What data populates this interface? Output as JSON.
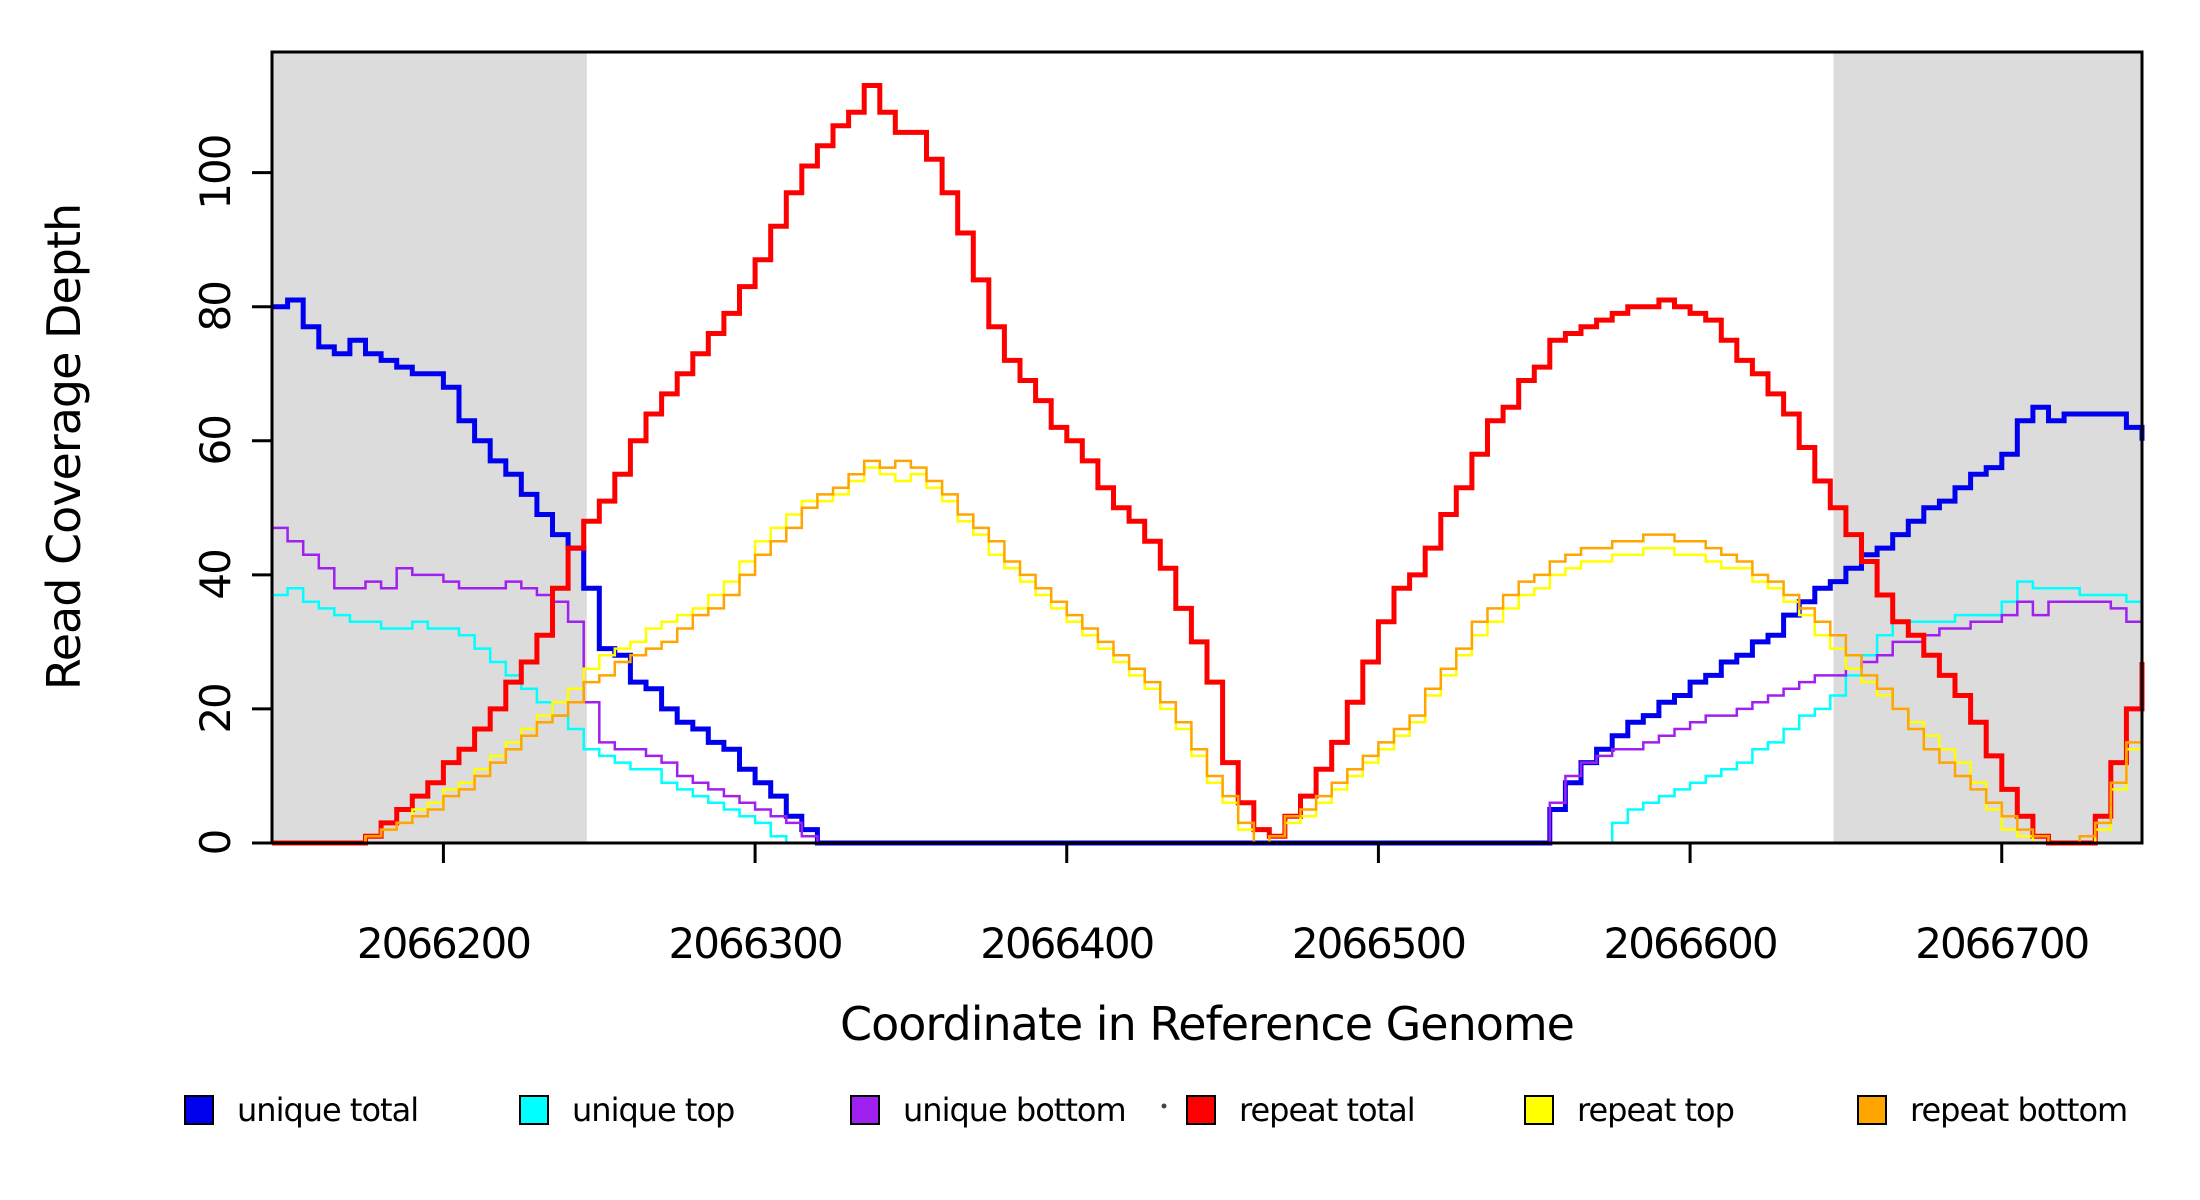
{
  "figure": {
    "x_axis_title": "Coordinate in Reference Genome",
    "y_axis_title": "Read Coverage Depth"
  },
  "chart_data": {
    "type": "line",
    "title": "",
    "xlabel": "Coordinate in Reference Genome",
    "ylabel": "Read Coverage Depth",
    "line_style": "step",
    "grid": false,
    "legend_position": "bottom",
    "background_color": "#FFFFFF",
    "frame_color": "#000000",
    "shaded_band_color": "#DCDCDC",
    "xlim": [
      2066145,
      2066745
    ],
    "ylim": [
      0,
      118
    ],
    "x_ticks": [
      2066200,
      2066300,
      2066400,
      2066500,
      2066600,
      2066700
    ],
    "y_ticks": [
      0,
      20,
      40,
      60,
      80,
      100
    ],
    "shaded_regions": [
      {
        "x0": 2066145,
        "x1": 2066246
      },
      {
        "x0": 2066646,
        "x1": 2066745
      }
    ],
    "x_start": 2066145,
    "x_step": 5,
    "series": [
      {
        "name": "unique total",
        "color": "#0000EE",
        "width": 5,
        "values": [
          80,
          81,
          77,
          74,
          73,
          75,
          73,
          72,
          71,
          70,
          70,
          68,
          63,
          60,
          57,
          55,
          52,
          49,
          46,
          44,
          38,
          29,
          28,
          24,
          23,
          20,
          18,
          17,
          15,
          14,
          11,
          9,
          7,
          4,
          2,
          0,
          0,
          0,
          0,
          0,
          0,
          0,
          0,
          0,
          0,
          0,
          0,
          0,
          0,
          0,
          0,
          0,
          0,
          0,
          0,
          0,
          0,
          0,
          0,
          0,
          0,
          0,
          0,
          0,
          0,
          0,
          0,
          0,
          0,
          0,
          0,
          0,
          0,
          0,
          0,
          0,
          0,
          0,
          0,
          0,
          0,
          0,
          5,
          9,
          12,
          14,
          16,
          18,
          19,
          21,
          22,
          24,
          25,
          27,
          28,
          30,
          31,
          34,
          36,
          38,
          39,
          41,
          43,
          44,
          46,
          48,
          50,
          51,
          53,
          55,
          56,
          58,
          63,
          65,
          63,
          64,
          64,
          64,
          64,
          62,
          60
        ]
      },
      {
        "name": "unique top",
        "color": "#00FFFF",
        "width": 2.5,
        "values": [
          37,
          38,
          36,
          35,
          34,
          33,
          33,
          32,
          32,
          33,
          32,
          32,
          31,
          29,
          27,
          25,
          23,
          21,
          19,
          17,
          14,
          13,
          12,
          11,
          11,
          9,
          8,
          7,
          6,
          5,
          4,
          3,
          1,
          0,
          0,
          0,
          0,
          0,
          0,
          0,
          0,
          0,
          0,
          0,
          0,
          0,
          0,
          0,
          0,
          0,
          0,
          0,
          0,
          0,
          0,
          0,
          0,
          0,
          0,
          0,
          0,
          0,
          0,
          0,
          0,
          0,
          0,
          0,
          0,
          0,
          0,
          0,
          0,
          0,
          0,
          0,
          0,
          0,
          0,
          0,
          0,
          0,
          0,
          0,
          0,
          0,
          3,
          5,
          6,
          7,
          8,
          9,
          10,
          11,
          12,
          14,
          15,
          17,
          19,
          20,
          22,
          25,
          28,
          31,
          33,
          33,
          33,
          33,
          34,
          34,
          34,
          36,
          39,
          38,
          38,
          38,
          37,
          37,
          37,
          36,
          36
        ]
      },
      {
        "name": "unique bottom",
        "color": "#A020F0",
        "width": 2.5,
        "values": [
          47,
          45,
          43,
          41,
          38,
          38,
          39,
          38,
          41,
          40,
          40,
          39,
          38,
          38,
          38,
          39,
          38,
          37,
          36,
          33,
          21,
          15,
          14,
          14,
          13,
          12,
          10,
          9,
          8,
          7,
          6,
          5,
          4,
          3,
          1,
          0,
          0,
          0,
          0,
          0,
          0,
          0,
          0,
          0,
          0,
          0,
          0,
          0,
          0,
          0,
          0,
          0,
          0,
          0,
          0,
          0,
          0,
          0,
          0,
          0,
          0,
          0,
          0,
          0,
          0,
          0,
          0,
          0,
          0,
          0,
          0,
          0,
          0,
          0,
          0,
          0,
          0,
          0,
          0,
          0,
          0,
          0,
          6,
          10,
          12,
          13,
          14,
          14,
          15,
          16,
          17,
          18,
          19,
          19,
          20,
          21,
          22,
          23,
          24,
          25,
          25,
          26,
          27,
          28,
          30,
          30,
          31,
          32,
          32,
          33,
          33,
          34,
          36,
          34,
          36,
          36,
          36,
          36,
          35,
          33,
          32
        ]
      },
      {
        "name": "repeat total",
        "color": "#FF0000",
        "width": 5,
        "values": [
          0,
          0,
          0,
          0,
          0,
          0,
          1,
          3,
          5,
          7,
          9,
          12,
          14,
          17,
          20,
          24,
          27,
          31,
          38,
          44,
          48,
          51,
          55,
          60,
          64,
          67,
          70,
          73,
          76,
          79,
          83,
          87,
          92,
          97,
          101,
          104,
          107,
          109,
          113,
          109,
          106,
          106,
          102,
          97,
          91,
          84,
          77,
          72,
          69,
          66,
          62,
          60,
          57,
          53,
          50,
          48,
          45,
          41,
          35,
          30,
          24,
          12,
          6,
          2,
          1,
          4,
          7,
          11,
          15,
          21,
          27,
          33,
          38,
          40,
          44,
          49,
          53,
          58,
          63,
          65,
          69,
          71,
          75,
          76,
          77,
          78,
          79,
          80,
          80,
          81,
          80,
          79,
          78,
          75,
          72,
          70,
          67,
          64,
          59,
          54,
          50,
          46,
          42,
          37,
          33,
          31,
          28,
          25,
          22,
          18,
          13,
          8,
          4,
          1,
          0,
          0,
          0,
          4,
          12,
          20,
          27
        ]
      },
      {
        "name": "repeat top",
        "color": "#FFFF00",
        "width": 2.5,
        "values": [
          0,
          0,
          0,
          0,
          0,
          0,
          1,
          2,
          3,
          5,
          6,
          8,
          9,
          11,
          13,
          15,
          17,
          19,
          21,
          23,
          26,
          28,
          29,
          30,
          32,
          33,
          34,
          35,
          37,
          39,
          42,
          45,
          47,
          49,
          51,
          51,
          52,
          54,
          56,
          55,
          54,
          55,
          53,
          51,
          48,
          46,
          43,
          41,
          39,
          37,
          35,
          33,
          31,
          29,
          27,
          25,
          23,
          20,
          17,
          13,
          9,
          6,
          2,
          0,
          1,
          3,
          4,
          6,
          8,
          10,
          12,
          14,
          16,
          18,
          22,
          25,
          28,
          31,
          33,
          35,
          37,
          38,
          40,
          41,
          42,
          42,
          43,
          43,
          44,
          44,
          43,
          43,
          42,
          41,
          41,
          39,
          38,
          36,
          34,
          31,
          29,
          26,
          24,
          22,
          20,
          18,
          16,
          14,
          12,
          9,
          5,
          2,
          1,
          0,
          0,
          0,
          0,
          2,
          8,
          14,
          19
        ]
      },
      {
        "name": "repeat bottom",
        "color": "#FFA500",
        "width": 2.5,
        "values": [
          0,
          0,
          0,
          0,
          0,
          0,
          1,
          2,
          3,
          4,
          5,
          7,
          8,
          10,
          12,
          14,
          16,
          18,
          19,
          21,
          24,
          25,
          27,
          28,
          29,
          30,
          32,
          34,
          35,
          37,
          40,
          43,
          45,
          47,
          50,
          52,
          53,
          55,
          57,
          56,
          57,
          56,
          54,
          52,
          49,
          47,
          45,
          42,
          40,
          38,
          36,
          34,
          32,
          30,
          28,
          26,
          24,
          21,
          18,
          14,
          10,
          7,
          3,
          0,
          1,
          4,
          5,
          7,
          9,
          11,
          13,
          15,
          17,
          19,
          23,
          26,
          29,
          33,
          35,
          37,
          39,
          40,
          42,
          43,
          44,
          44,
          45,
          45,
          46,
          46,
          45,
          45,
          44,
          43,
          42,
          40,
          39,
          37,
          35,
          33,
          31,
          28,
          25,
          23,
          20,
          17,
          14,
          12,
          10,
          8,
          6,
          4,
          2,
          1,
          0,
          0,
          1,
          3,
          9,
          15,
          18
        ]
      }
    ]
  },
  "legend": {
    "swatch_border_color": "#000000",
    "items": [
      {
        "label": "unique total",
        "color": "#0000EE"
      },
      {
        "label": "unique top",
        "color": "#00FFFF"
      },
      {
        "label": "unique bottom",
        "color": "#A020F0"
      },
      {
        "label": "repeat total",
        "color": "#FF0000"
      },
      {
        "label": "repeat top",
        "color": "#FFFF00"
      },
      {
        "label": "repeat bottom",
        "color": "#FFA500"
      }
    ]
  }
}
